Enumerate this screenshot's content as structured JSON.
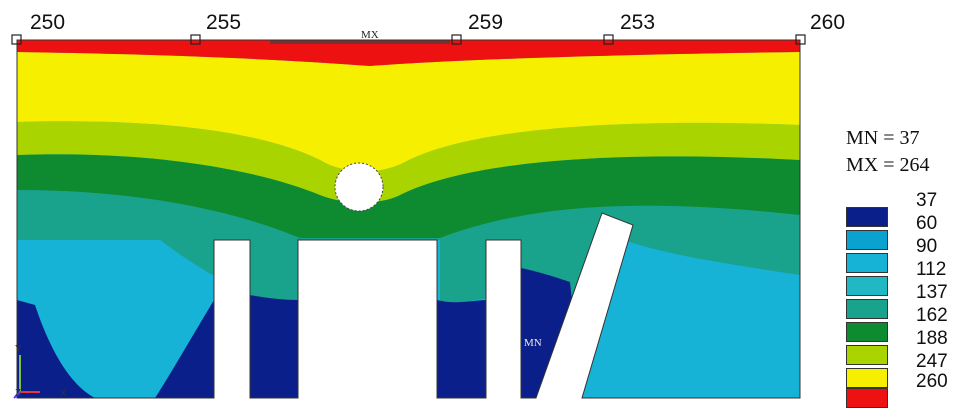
{
  "node_labels": [
    "250",
    "255",
    "259",
    "253",
    "260"
  ],
  "marks": {
    "mx": "MX",
    "mn": "MN"
  },
  "stats": {
    "mn": "MN = 37",
    "mx": "MX = 264"
  },
  "legend": [
    {
      "value": "37",
      "color": "#0b1f8a"
    },
    {
      "value": "60",
      "color": "#0aa3cf"
    },
    {
      "value": "90",
      "color": "#17b3d6"
    },
    {
      "value": "112",
      "color": "#1fb8c4"
    },
    {
      "value": "137",
      "color": "#19a28c"
    },
    {
      "value": "162",
      "color": "#0e8a30"
    },
    {
      "value": "188",
      "color": "#a9d400"
    },
    {
      "value": "247",
      "color": "#f7ef00"
    },
    {
      "value": "260",
      "color": "#ee1111"
    }
  ],
  "axis_triad": {
    "x": "X",
    "y": "Y",
    "z": "Z"
  }
}
